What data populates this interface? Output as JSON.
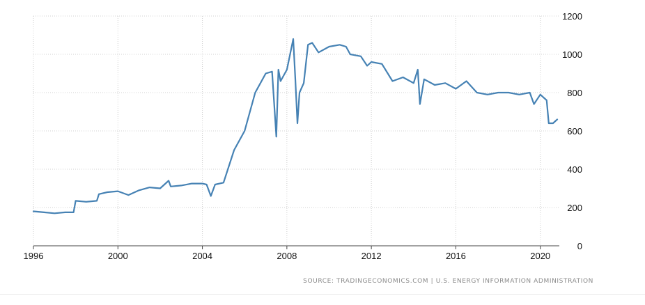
{
  "chart_data": {
    "type": "line",
    "title": "",
    "xlabel": "",
    "ylabel": "",
    "xlim": [
      1996.0,
      2020.9
    ],
    "ylim": [
      0,
      1200
    ],
    "x_ticks": [
      1996,
      2000,
      2004,
      2008,
      2012,
      2016,
      2020
    ],
    "y_ticks": [
      0,
      200,
      400,
      600,
      800,
      1000,
      1200
    ],
    "grid": true,
    "y_axis_side": "right",
    "series": [
      {
        "color": "#4682b4",
        "x": [
          1996.0,
          1996.5,
          1997.0,
          1997.5,
          1997.9,
          1998.0,
          1998.5,
          1999.0,
          1999.1,
          1999.5,
          2000.0,
          2000.5,
          2001.0,
          2001.5,
          2002.0,
          2002.4,
          2002.5,
          2003.0,
          2003.5,
          2004.0,
          2004.2,
          2004.4,
          2004.6,
          2005.0,
          2005.5,
          2006.0,
          2006.5,
          2007.0,
          2007.3,
          2007.5,
          2007.6,
          2007.7,
          2008.0,
          2008.3,
          2008.4,
          2008.5,
          2008.6,
          2008.8,
          2009.0,
          2009.2,
          2009.5,
          2010.0,
          2010.5,
          2010.8,
          2011.0,
          2011.5,
          2011.8,
          2012.0,
          2012.5,
          2013.0,
          2013.5,
          2014.0,
          2014.2,
          2014.3,
          2014.5,
          2015.0,
          2015.5,
          2016.0,
          2016.5,
          2017.0,
          2017.5,
          2018.0,
          2018.5,
          2019.0,
          2019.5,
          2019.7,
          2020.0,
          2020.3,
          2020.4,
          2020.6,
          2020.8
        ],
        "values": [
          180,
          175,
          170,
          175,
          175,
          235,
          230,
          235,
          270,
          280,
          285,
          265,
          290,
          305,
          300,
          340,
          310,
          315,
          325,
          325,
          320,
          260,
          320,
          330,
          500,
          600,
          800,
          900,
          910,
          570,
          920,
          860,
          920,
          1080,
          870,
          640,
          800,
          850,
          1050,
          1060,
          1010,
          1040,
          1050,
          1040,
          1000,
          990,
          940,
          960,
          950,
          860,
          880,
          850,
          920,
          740,
          870,
          840,
          850,
          820,
          860,
          800,
          790,
          800,
          800,
          790,
          800,
          740,
          790,
          760,
          640,
          640,
          660
        ]
      }
    ]
  },
  "source_text": "SOURCE: TRADINGECONOMICS.COM | U.S. ENERGY INFORMATION ADMINISTRATION"
}
